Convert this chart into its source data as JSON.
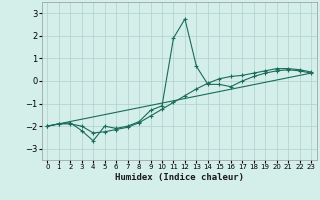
{
  "title": "",
  "xlabel": "Humidex (Indice chaleur)",
  "ylabel": "",
  "xlim": [
    -0.5,
    23.5
  ],
  "ylim": [
    -3.5,
    3.5
  ],
  "xticks": [
    0,
    1,
    2,
    3,
    4,
    5,
    6,
    7,
    8,
    9,
    10,
    11,
    12,
    13,
    14,
    15,
    16,
    17,
    18,
    19,
    20,
    21,
    22,
    23
  ],
  "yticks": [
    -3,
    -2,
    -1,
    0,
    1,
    2,
    3
  ],
  "bg_color": "#d4eeea",
  "line_color": "#1a6b5a",
  "grid_color": "#b0d0cc",
  "line1_x": [
    0,
    1,
    2,
    3,
    4,
    5,
    6,
    7,
    8,
    9,
    10,
    11,
    12,
    13,
    14,
    15,
    16,
    17,
    18,
    19,
    20,
    21,
    22,
    23
  ],
  "line1_y": [
    -2.0,
    -1.9,
    -1.85,
    -2.2,
    -2.65,
    -2.0,
    -2.1,
    -2.0,
    -1.8,
    -1.3,
    -1.1,
    1.9,
    2.75,
    0.65,
    -0.15,
    -0.15,
    -0.25,
    0.0,
    0.2,
    0.35,
    0.45,
    0.5,
    0.45,
    0.35
  ],
  "line2_x": [
    0,
    1,
    2,
    3,
    4,
    5,
    6,
    7,
    8,
    9,
    10,
    11,
    12,
    13,
    14,
    15,
    16,
    17,
    18,
    19,
    20,
    21,
    22,
    23
  ],
  "line2_y": [
    -2.0,
    -1.9,
    -1.9,
    -2.0,
    -2.3,
    -2.25,
    -2.15,
    -2.05,
    -1.85,
    -1.55,
    -1.25,
    -0.95,
    -0.65,
    -0.35,
    -0.1,
    0.1,
    0.2,
    0.25,
    0.35,
    0.45,
    0.55,
    0.55,
    0.5,
    0.4
  ],
  "line3_x": [
    0,
    23
  ],
  "line3_y": [
    -2.0,
    0.35
  ]
}
